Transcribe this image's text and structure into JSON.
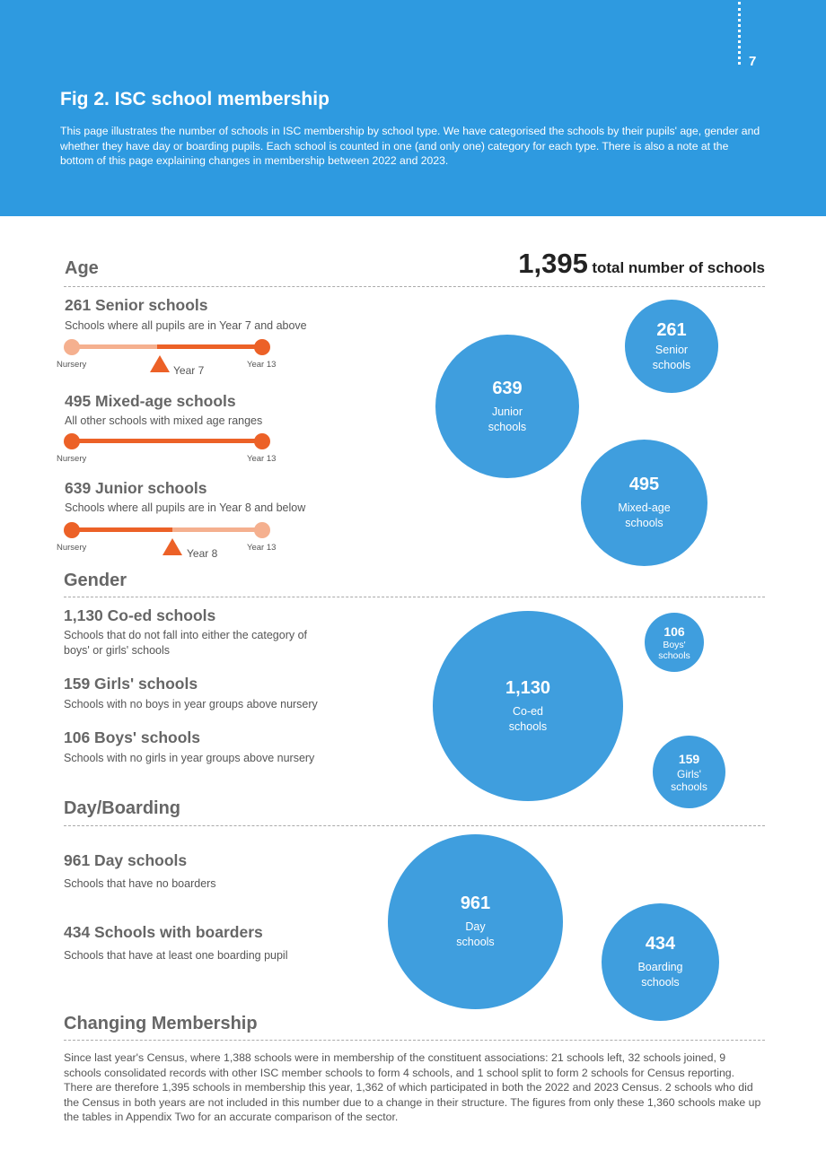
{
  "header": {
    "page_number": "7",
    "title": "Fig 2. ISC school membership",
    "intro": "This page illustrates the number of schools in ISC membership by school type. We have categorised the schools by their pupils' age, gender and whether they have day or boarding pupils. Each school is counted in one (and only one) category for each type. There is also a note at the bottom of this page explaining changes in membership between 2022 and 2023."
  },
  "total": {
    "number": "1,395",
    "label": "total number of schools"
  },
  "age": {
    "title": "Age",
    "items": [
      {
        "title": "261 Senior schools",
        "desc": "Schools where all pupils are in Year 7 and above",
        "start_label": "Nursery",
        "end_label": "Year 13",
        "marker_label": "Year 7",
        "range_start": 0.45,
        "range_end": 1.0
      },
      {
        "title": "495 Mixed-age schools",
        "desc": "All other schools with mixed age ranges",
        "start_label": "Nursery",
        "end_label": "Year 13",
        "range_start": 0.0,
        "range_end": 1.0
      },
      {
        "title": "639 Junior schools",
        "desc": "Schools where all pupils are in Year 8 and below",
        "start_label": "Nursery",
        "end_label": "Year 13",
        "marker_label": "Year 8",
        "range_start": 0.0,
        "range_end": 0.53
      }
    ],
    "bubbles": [
      {
        "number": "261",
        "label": "Senior schools",
        "value": 261
      },
      {
        "number": "639",
        "label": "Junior schools",
        "value": 639
      },
      {
        "number": "495",
        "label": "Mixed-age schools",
        "value": 495
      }
    ]
  },
  "gender": {
    "title": "Gender",
    "items": [
      {
        "title": "1,130 Co-ed schools",
        "desc": "Schools that do not fall into either the category of boys' or girls' schools"
      },
      {
        "title": "159 Girls' schools",
        "desc": "Schools with no boys in year groups above nursery"
      },
      {
        "title": "106 Boys' schools",
        "desc": "Schools with no girls in year groups above nursery"
      }
    ],
    "bubbles": [
      {
        "number": "106",
        "label": "Boys' schools",
        "value": 106
      },
      {
        "number": "1,130",
        "label": "Co-ed schools",
        "value": 1130
      },
      {
        "number": "159",
        "label": "Girls' schools",
        "value": 159
      }
    ]
  },
  "boarding": {
    "title": "Day/Boarding",
    "items": [
      {
        "title": "961 Day schools",
        "desc": "Schools that have no boarders"
      },
      {
        "title": "434 Schools with boarders",
        "desc": "Schools that have at least one boarding pupil"
      }
    ],
    "bubbles": [
      {
        "number": "961",
        "label": "Day schools",
        "value": 961
      },
      {
        "number": "434",
        "label": "Boarding schools",
        "value": 434
      }
    ]
  },
  "changing": {
    "title": "Changing Membership",
    "text": "Since last year's Census, where 1,388 schools were in membership of the constituent associations: 21 schools left, 32 schools joined, 9 schools consolidated records with other ISC member schools to form 4 schools, and 1 school split to form 2 schools for Census reporting. There are therefore 1,395 schools in membership this year, 1,362 of which participated in both the 2022 and 2023 Census. 2 schools who did the Census in both years are not included in this number due to a change in their structure. The figures from only these 1,360 schools make up the tables in Appendix Two for an accurate comparison of the sector."
  },
  "colors": {
    "header_bg": "#2e9ae0",
    "bubble": "#3f9ede",
    "accent_orange": "#ec6127",
    "light_orange": "#f5b08f"
  }
}
